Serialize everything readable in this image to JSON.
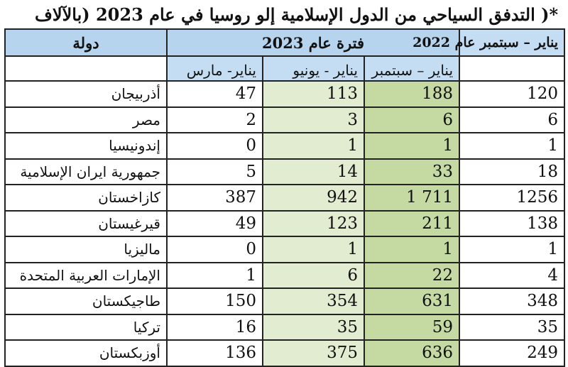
{
  "title": "*( التدفق السياحي من الدول الإسلامية إلو روسيا في عام 2023 (بالآلاف",
  "header": {
    "col_2022": "يناير – سبتمبر عام 2022",
    "period_2023": "فترة عام 2023",
    "country": "دولة",
    "sub_sep": "يناير – سبتمبر",
    "sub_jun": "يناير - يونيو",
    "sub_mar": "يناير- مارس"
  },
  "rows": [
    {
      "country": "أذربيجان",
      "mar": "47",
      "jun": "113",
      "sep": "188",
      "y2022": "120"
    },
    {
      "country": "مصر",
      "mar": "2",
      "jun": "3",
      "sep": "6",
      "y2022": "6"
    },
    {
      "country": "إندونيسيا",
      "mar": "0",
      "jun": "1",
      "sep": "1",
      "y2022": "1"
    },
    {
      "country": "جمهورية ايران الإسلامية",
      "mar": "5",
      "jun": "14",
      "sep": "33",
      "y2022": "18"
    },
    {
      "country": "كازاخستان",
      "mar": "387",
      "jun": "942",
      "sep": "1 711",
      "y2022": "1256"
    },
    {
      "country": "قيرغيستان",
      "mar": "49",
      "jun": "123",
      "sep": "211",
      "y2022": "138"
    },
    {
      "country": "ماليزيا",
      "mar": "0",
      "jun": "1",
      "sep": "1",
      "y2022": "1"
    },
    {
      "country": "الإمارات العربية المتحدة",
      "mar": "1",
      "jun": "6",
      "sep": "22",
      "y2022": "4"
    },
    {
      "country": "طاجيكستان",
      "mar": "150",
      "jun": "354",
      "sep": "631",
      "y2022": "348"
    },
    {
      "country": "تركيا",
      "mar": "16",
      "jun": "35",
      "sep": "59",
      "y2022": "35"
    },
    {
      "country": "أوزبكستان",
      "mar": "136",
      "jun": "375",
      "sep": "636",
      "y2022": "249"
    }
  ]
}
